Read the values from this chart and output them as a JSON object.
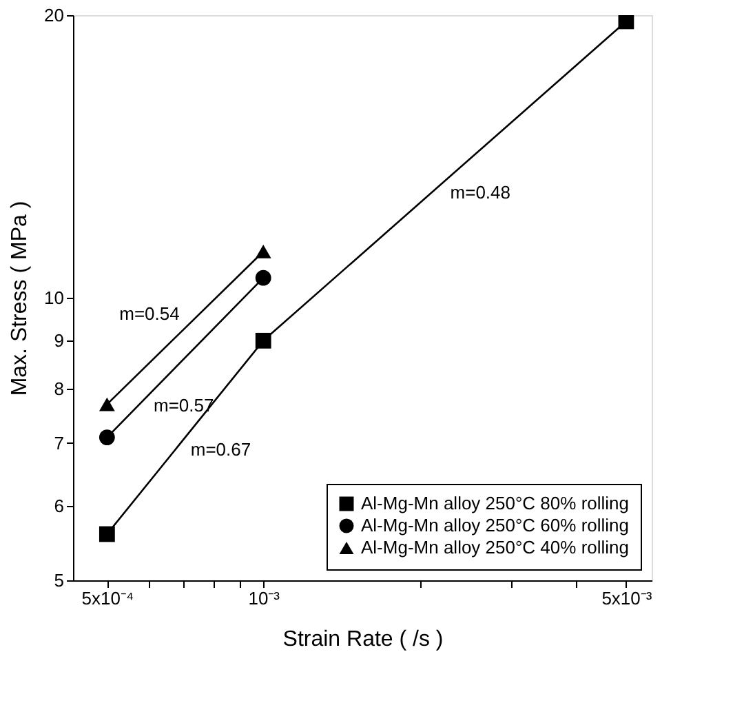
{
  "chart_data": {
    "type": "line",
    "xlabel": "Strain Rate ( /s )",
    "ylabel": "Max. Stress ( MPa )",
    "log": "xy",
    "grid": false,
    "legend": "bottom right",
    "line_style": "solid",
    "xlim": [
      0.00043,
      0.0056
    ],
    "xticks": [
      {
        "value": 0.0005,
        "label": "5x10⁻⁴"
      },
      {
        "value": 0.0006,
        "label": null
      },
      {
        "value": 0.0007,
        "label": null
      },
      {
        "value": 0.0008,
        "label": null
      },
      {
        "value": 0.0009,
        "label": null
      },
      {
        "value": 0.001,
        "label": "10⁻³"
      },
      {
        "value": 0.002,
        "label": null
      },
      {
        "value": 0.003,
        "label": null
      },
      {
        "value": 0.004,
        "label": null
      },
      {
        "value": 0.005,
        "label": "5x10⁻³"
      }
    ],
    "ylim": [
      5,
      20
    ],
    "yticks": [
      5,
      6,
      7,
      8,
      9,
      10,
      20
    ],
    "series": [
      {
        "name": "Al-Mg-Mn alloy 250°C 80% rolling",
        "color": "#000000",
        "marker": "square",
        "x": [
          0.0005,
          0.001,
          0.005
        ],
        "values": [
          5.6,
          9.0,
          19.7
        ]
      },
      {
        "name": "Al-Mg-Mn alloy 250°C 60% rolling",
        "color": "#000000",
        "marker": "circle",
        "x": [
          0.0005,
          0.001
        ],
        "values": [
          7.1,
          10.5
        ]
      },
      {
        "name": "Al-Mg-Mn alloy 250°C 40% rolling",
        "color": "#000000",
        "marker": "triangle",
        "x": [
          0.0005,
          0.001
        ],
        "values": [
          7.7,
          11.2
        ]
      }
    ],
    "annotations": [
      {
        "text": "m=0.48",
        "x": 0.002236,
        "y": 13.32
      },
      {
        "text": "m=0.54",
        "x": 0.000707,
        "y": 9.29
      },
      {
        "text": "m=0.57",
        "x": 0.0006,
        "y": 7.9
      },
      {
        "text": "m=0.67",
        "x": 0.000707,
        "y": 7.1
      }
    ]
  }
}
